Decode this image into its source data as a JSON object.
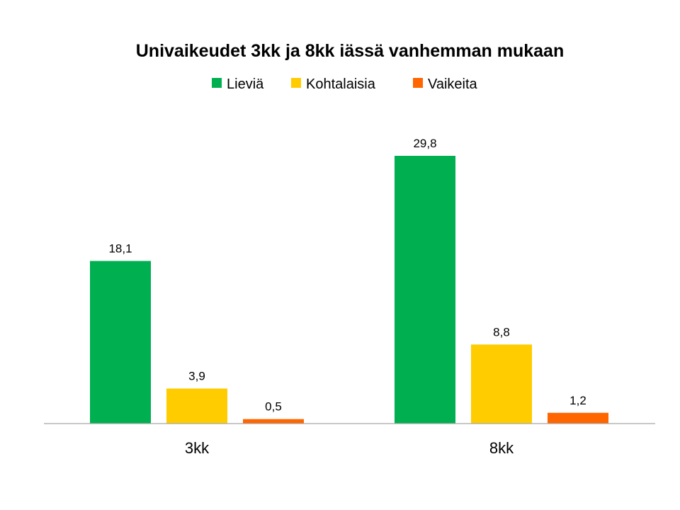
{
  "chart_data": {
    "type": "bar",
    "title": "Univaikeudet 3kk ja 8kk iässä vanhemman mukaan",
    "categories": [
      "3kk",
      "8kk"
    ],
    "series": [
      {
        "name": "Lieviä",
        "values": [
          18.1,
          29.8
        ],
        "labels": [
          "18,1",
          "29,8"
        ],
        "color": "#00B050"
      },
      {
        "name": "Kohtalaisia",
        "values": [
          3.9,
          8.8
        ],
        "labels": [
          "3,9",
          "8,8"
        ],
        "color": "#FFCC00"
      },
      {
        "name": "Vaikeita",
        "values": [
          0.5,
          1.2
        ],
        "labels": [
          "0,5",
          "1,2"
        ],
        "color": "#FF6600"
      }
    ],
    "ylim": [
      0,
      30
    ],
    "grid": false,
    "legend": "top-center",
    "axis_color": "#A6A6A6"
  }
}
